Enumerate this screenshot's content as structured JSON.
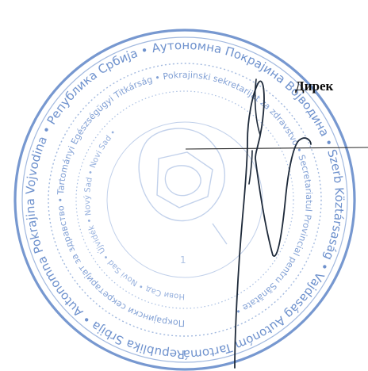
{
  "document": {
    "heading": "Директор",
    "heading_visible": "Дирек",
    "ink_color": "#5f86c8",
    "signature_color": "#1e2a3a",
    "line_color": "#2b2b2b"
  },
  "stamp": {
    "outer_ring_text": "Republika Srbija • Autonomna Pokrajina Vojvodina • Република Србија • Аутономна Покрајина Војводина • Szerb Köztársaság • Vajdaság Autonóm Tartomány • Republica Serbia • Provincia Autonomă Voivodina •",
    "inner_ring_text": "Покрајински секретаријат за здравство • Tartományi Egészségügyi Titkárság • Pokrajinski sekretarijat za zdravstvo • Secretariatul Provincial pentru Sănătate •",
    "third_ring_text": "Нови Сад • Novi Sad • Újvidék • Nový Sad • Novi Sad •",
    "center_text": "1"
  }
}
